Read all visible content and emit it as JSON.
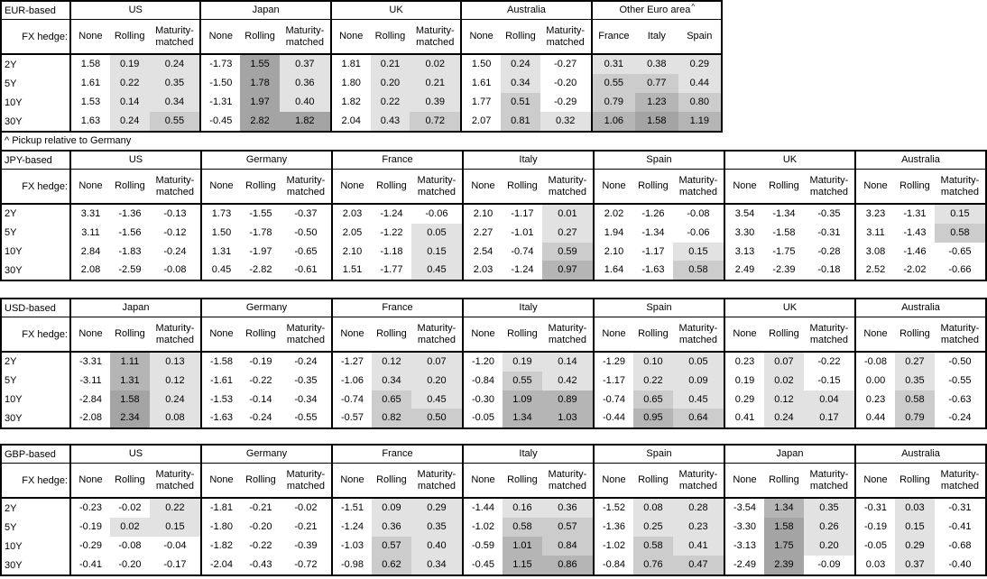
{
  "footnote": "^ Pickup relative to Germany",
  "fx_hedge_label": "FX hedge:",
  "hedge_columns": [
    "None",
    "Rolling",
    "Maturity-matched"
  ],
  "row_labels": [
    "2Y",
    "5Y",
    "10Y",
    "30Y"
  ],
  "heatmap": {
    "description": "cell background shading by pickup value; value<=0 unshaded; None columns unshaded",
    "thresholds": [
      0,
      0.45,
      0.85,
      1.45
    ],
    "colors": [
      "#ffffff",
      "#e2e2e2",
      "#cccccc",
      "#b5b5b5",
      "#a4a4a4"
    ]
  },
  "tables": [
    {
      "base": "EUR-based",
      "groups": [
        {
          "name": "US",
          "rows": [
            [
              "1.58",
              "0.19",
              "0.24"
            ],
            [
              "1.61",
              "0.22",
              "0.35"
            ],
            [
              "1.53",
              "0.14",
              "0.34"
            ],
            [
              "1.63",
              "0.24",
              "0.55"
            ]
          ]
        },
        {
          "name": "Japan",
          "rows": [
            [
              "-1.73",
              "1.55",
              "0.37"
            ],
            [
              "-1.50",
              "1.78",
              "0.36"
            ],
            [
              "-1.31",
              "1.97",
              "0.40"
            ],
            [
              "-0.45",
              "2.82",
              "1.82"
            ]
          ]
        },
        {
          "name": "UK",
          "rows": [
            [
              "1.81",
              "0.21",
              "0.02"
            ],
            [
              "1.80",
              "0.20",
              "0.21"
            ],
            [
              "1.82",
              "0.22",
              "0.39"
            ],
            [
              "2.04",
              "0.43",
              "0.72"
            ]
          ]
        },
        {
          "name": "Australia",
          "rows": [
            [
              "1.50",
              "0.24",
              "-0.27"
            ],
            [
              "1.61",
              "0.34",
              "-0.20"
            ],
            [
              "1.77",
              "0.51",
              "-0.29"
            ],
            [
              "2.07",
              "0.81",
              "0.32"
            ]
          ]
        },
        {
          "name": "Other Euro area",
          "sup": "^",
          "columns": [
            "France",
            "Italy",
            "Spain"
          ],
          "rows": [
            [
              "0.31",
              "0.38",
              "0.29"
            ],
            [
              "0.55",
              "0.77",
              "0.44"
            ],
            [
              "0.79",
              "1.23",
              "0.80"
            ],
            [
              "1.06",
              "1.58",
              "1.19"
            ]
          ]
        }
      ]
    },
    {
      "base": "JPY-based",
      "groups": [
        {
          "name": "US",
          "rows": [
            [
              "3.31",
              "-1.36",
              "-0.13"
            ],
            [
              "3.11",
              "-1.56",
              "-0.12"
            ],
            [
              "2.84",
              "-1.83",
              "-0.24"
            ],
            [
              "2.08",
              "-2.59",
              "-0.08"
            ]
          ]
        },
        {
          "name": "Germany",
          "rows": [
            [
              "1.73",
              "-1.55",
              "-0.37"
            ],
            [
              "1.50",
              "-1.78",
              "-0.50"
            ],
            [
              "1.31",
              "-1.97",
              "-0.65"
            ],
            [
              "0.45",
              "-2.82",
              "-0.61"
            ]
          ]
        },
        {
          "name": "France",
          "rows": [
            [
              "2.03",
              "-1.24",
              "-0.06"
            ],
            [
              "2.05",
              "-1.22",
              "0.05"
            ],
            [
              "2.10",
              "-1.18",
              "0.15"
            ],
            [
              "1.51",
              "-1.77",
              "0.45"
            ]
          ]
        },
        {
          "name": "Italy",
          "rows": [
            [
              "2.10",
              "-1.17",
              "0.01"
            ],
            [
              "2.27",
              "-1.01",
              "0.27"
            ],
            [
              "2.54",
              "-0.74",
              "0.59"
            ],
            [
              "2.03",
              "-1.24",
              "0.97"
            ]
          ]
        },
        {
          "name": "Spain",
          "rows": [
            [
              "2.02",
              "-1.26",
              "-0.08"
            ],
            [
              "1.94",
              "-1.34",
              "-0.06"
            ],
            [
              "2.10",
              "-1.17",
              "0.15"
            ],
            [
              "1.64",
              "-1.63",
              "0.58"
            ]
          ]
        },
        {
          "name": "UK",
          "rows": [
            [
              "3.54",
              "-1.34",
              "-0.35"
            ],
            [
              "3.30",
              "-1.58",
              "-0.31"
            ],
            [
              "3.13",
              "-1.75",
              "-0.28"
            ],
            [
              "2.49",
              "-2.39",
              "-0.18"
            ]
          ]
        },
        {
          "name": "Australia",
          "rows": [
            [
              "3.23",
              "-1.31",
              "0.15"
            ],
            [
              "3.11",
              "-1.43",
              "0.58"
            ],
            [
              "3.08",
              "-1.46",
              "-0.65"
            ],
            [
              "2.52",
              "-2.02",
              "-0.66"
            ]
          ]
        }
      ]
    },
    {
      "base": "USD-based",
      "groups": [
        {
          "name": "Japan",
          "rows": [
            [
              "-3.31",
              "1.11",
              "0.13"
            ],
            [
              "-3.11",
              "1.31",
              "0.12"
            ],
            [
              "-2.84",
              "1.58",
              "0.24"
            ],
            [
              "-2.08",
              "2.34",
              "0.08"
            ]
          ]
        },
        {
          "name": "Germany",
          "rows": [
            [
              "-1.58",
              "-0.19",
              "-0.24"
            ],
            [
              "-1.61",
              "-0.22",
              "-0.35"
            ],
            [
              "-1.53",
              "-0.14",
              "-0.34"
            ],
            [
              "-1.63",
              "-0.24",
              "-0.55"
            ]
          ]
        },
        {
          "name": "France",
          "rows": [
            [
              "-1.27",
              "0.12",
              "0.07"
            ],
            [
              "-1.06",
              "0.34",
              "0.20"
            ],
            [
              "-0.74",
              "0.65",
              "0.45"
            ],
            [
              "-0.57",
              "0.82",
              "0.50"
            ]
          ]
        },
        {
          "name": "Italy",
          "rows": [
            [
              "-1.20",
              "0.19",
              "0.14"
            ],
            [
              "-0.84",
              "0.55",
              "0.42"
            ],
            [
              "-0.30",
              "1.09",
              "0.89"
            ],
            [
              "-0.05",
              "1.34",
              "1.03"
            ]
          ]
        },
        {
          "name": "Spain",
          "rows": [
            [
              "-1.29",
              "0.10",
              "0.05"
            ],
            [
              "-1.17",
              "0.22",
              "0.09"
            ],
            [
              "-0.74",
              "0.65",
              "0.45"
            ],
            [
              "-0.44",
              "0.95",
              "0.64"
            ]
          ]
        },
        {
          "name": "UK",
          "rows": [
            [
              "0.23",
              "0.07",
              "-0.22"
            ],
            [
              "0.19",
              "0.02",
              "-0.15"
            ],
            [
              "0.29",
              "0.12",
              "0.04"
            ],
            [
              "0.41",
              "0.24",
              "0.17"
            ]
          ]
        },
        {
          "name": "Australia",
          "rows": [
            [
              "-0.08",
              "0.27",
              "-0.50"
            ],
            [
              "0.00",
              "0.35",
              "-0.55"
            ],
            [
              "0.23",
              "0.58",
              "-0.63"
            ],
            [
              "0.44",
              "0.79",
              "-0.24"
            ]
          ]
        }
      ]
    },
    {
      "base": "GBP-based",
      "groups": [
        {
          "name": "US",
          "rows": [
            [
              "-0.23",
              "-0.02",
              "0.22"
            ],
            [
              "-0.19",
              "0.02",
              "0.15"
            ],
            [
              "-0.29",
              "-0.08",
              "-0.04"
            ],
            [
              "-0.41",
              "-0.20",
              "-0.17"
            ]
          ]
        },
        {
          "name": "Germany",
          "rows": [
            [
              "-1.81",
              "-0.21",
              "-0.02"
            ],
            [
              "-1.80",
              "-0.20",
              "-0.21"
            ],
            [
              "-1.82",
              "-0.22",
              "-0.39"
            ],
            [
              "-2.04",
              "-0.43",
              "-0.72"
            ]
          ]
        },
        {
          "name": "France",
          "rows": [
            [
              "-1.51",
              "0.09",
              "0.29"
            ],
            [
              "-1.24",
              "0.36",
              "0.35"
            ],
            [
              "-1.03",
              "0.57",
              "0.40"
            ],
            [
              "-0.98",
              "0.62",
              "0.34"
            ]
          ]
        },
        {
          "name": "Italy",
          "rows": [
            [
              "-1.44",
              "0.16",
              "0.36"
            ],
            [
              "-1.02",
              "0.58",
              "0.57"
            ],
            [
              "-0.59",
              "1.01",
              "0.84"
            ],
            [
              "-0.45",
              "1.15",
              "0.86"
            ]
          ]
        },
        {
          "name": "Spain",
          "rows": [
            [
              "-1.52",
              "0.08",
              "0.28"
            ],
            [
              "-1.36",
              "0.25",
              "0.23"
            ],
            [
              "-1.02",
              "0.58",
              "0.41"
            ],
            [
              "-0.84",
              "0.76",
              "0.47"
            ]
          ]
        },
        {
          "name": "Japan",
          "rows": [
            [
              "-3.54",
              "1.34",
              "0.35"
            ],
            [
              "-3.30",
              "1.58",
              "0.26"
            ],
            [
              "-3.13",
              "1.75",
              "0.20"
            ],
            [
              "-2.49",
              "2.39",
              "-0.09"
            ]
          ]
        },
        {
          "name": "Australia",
          "rows": [
            [
              "-0.31",
              "0.03",
              "-0.31"
            ],
            [
              "-0.19",
              "0.15",
              "-0.41"
            ],
            [
              "-0.05",
              "0.29",
              "-0.68"
            ],
            [
              "0.03",
              "0.37",
              "-0.40"
            ]
          ]
        }
      ]
    }
  ]
}
